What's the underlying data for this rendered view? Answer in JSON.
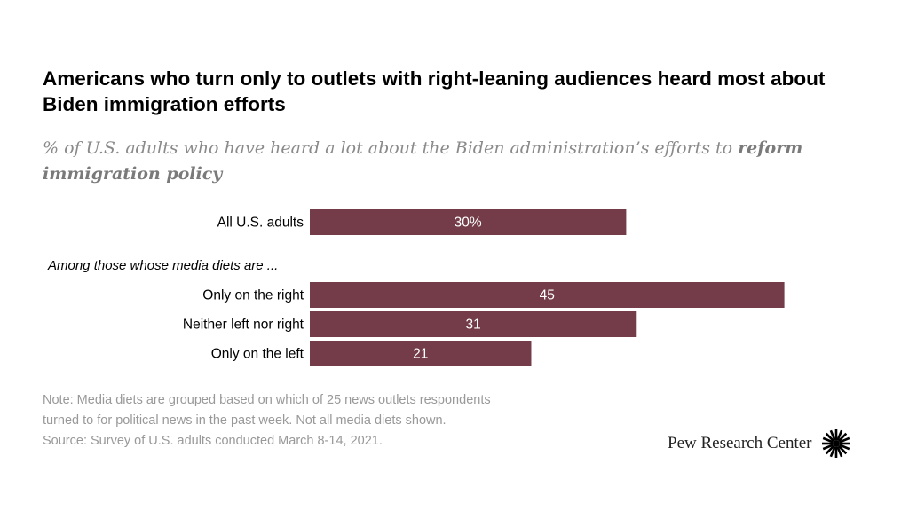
{
  "title": "Americans who turn only to outlets with right-leaning audiences heard most about Biden immigration efforts",
  "subtitle_plain": "% of U.S. adults who have heard a lot about the Biden administration’s efforts to ",
  "subtitle_bold": "reform immigration policy",
  "chart_data": {
    "type": "bar",
    "orientation": "horizontal",
    "categories": [
      "All U.S. adults",
      "Only on the right",
      "Neither left nor right",
      "Only on the left"
    ],
    "values": [
      30,
      45,
      31,
      21
    ],
    "data_labels": [
      "30%",
      "45",
      "31",
      "21"
    ],
    "group_label": "Among those whose media diets are ...",
    "bar_color": "#733c48",
    "grid": false
  },
  "note_lines": [
    "Note: Media diets are grouped based on which of 25 news outlets respondents",
    "turned to for political news in the past week. Not all media diets shown.",
    "Source: Survey of U.S. adults conducted March 8-14, 2021."
  ],
  "logo_text": "Pew Research Center"
}
